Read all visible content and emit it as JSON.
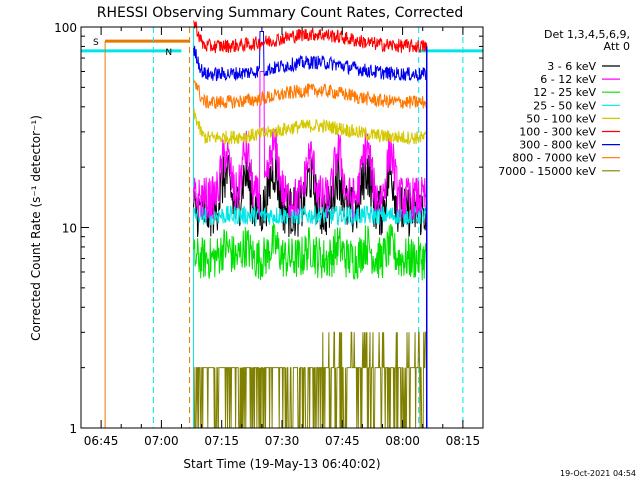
{
  "chart_data": {
    "type": "line",
    "title": "RHESSI Observing Summary Count Rates, Corrected",
    "ylabel": "Corrected Count Rate (s⁻¹ detector⁻¹)",
    "xlabel": "Start Time (19-May-13 06:40:02)",
    "footer": "19-Oct-2021 04:54",
    "y_scale": "log",
    "ylim": [
      1,
      100
    ],
    "xlim": [
      "06:40",
      "08:20"
    ],
    "x_tick_labels": [
      "06:45",
      "07:00",
      "07:15",
      "07:30",
      "07:45",
      "08:00",
      "08:15"
    ],
    "y_tick_labels": [
      "1",
      "10",
      "100"
    ],
    "legend": {
      "placement": "top-right",
      "header_lines": [
        "Det 1,3,4,5,6,9,",
        "Att 0"
      ]
    },
    "markers": [
      {
        "label": "S",
        "color": "#e87800"
      },
      {
        "label": "N",
        "color": "#00e5e5"
      }
    ],
    "series": [
      {
        "name": "3 - 6 keV",
        "color": "#000000",
        "approx_level": 12
      },
      {
        "name": "6 - 12 keV",
        "color": "#ff00ff",
        "approx_level": 14
      },
      {
        "name": "12 - 25 keV",
        "color": "#00e000",
        "approx_level": 7
      },
      {
        "name": "25 - 50 keV",
        "color": "#00e5e5",
        "approx_level": 11.5
      },
      {
        "name": "50 - 100 keV",
        "color": "#d4c800",
        "approx_level": 28
      },
      {
        "name": "100 - 300 keV",
        "color": "#ff0000",
        "approx_level": 80
      },
      {
        "name": "300 - 800 keV",
        "color": "#0000ee",
        "approx_level": 58
      },
      {
        "name": "800 - 7000 keV",
        "color": "#ff7700",
        "approx_level": 42
      },
      {
        "name": "7000 - 15000 keV",
        "color": "#808000",
        "approx_level": 2
      }
    ]
  }
}
